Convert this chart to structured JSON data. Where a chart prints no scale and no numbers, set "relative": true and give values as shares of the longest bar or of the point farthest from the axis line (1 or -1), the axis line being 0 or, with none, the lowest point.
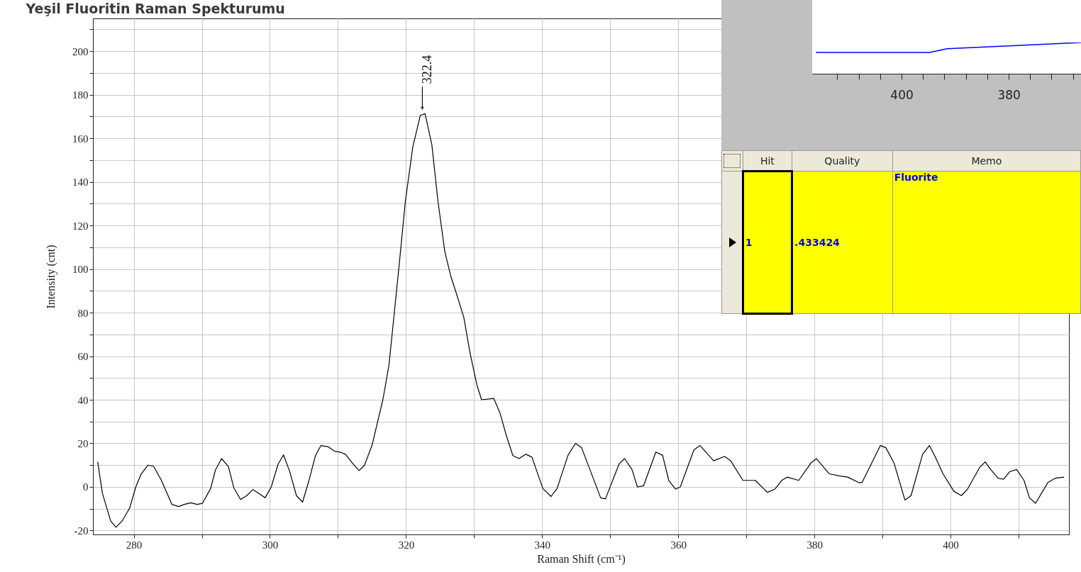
{
  "chart_data": [
    {
      "type": "line",
      "title": "Yeşil Fluoritin Raman Spekturumu",
      "xlabel": "Raman Shift (cm⁻¹)",
      "ylabel": "Intensity (cnt)",
      "xlim": [
        274,
        417.4
      ],
      "ylim": [
        -21.8,
        215
      ],
      "xticks": [
        280,
        {
          "value": 290,
          "label": null
        },
        300,
        {
          "value": 310,
          "label": null
        },
        320,
        {
          "value": 330,
          "label": null
        },
        340,
        {
          "value": 350,
          "label": null
        },
        360,
        {
          "value": 370,
          "label": null
        },
        380,
        {
          "value": 390,
          "label": null
        },
        400,
        {
          "value": 410,
          "label": null
        }
      ],
      "yticks": [
        -20,
        {
          "value": -10,
          "label": null
        },
        0,
        {
          "value": 10,
          "label": null
        },
        20,
        {
          "value": 30,
          "label": null
        },
        40,
        {
          "value": 50,
          "label": null
        },
        60,
        {
          "value": 70,
          "label": null
        },
        80,
        {
          "value": 90,
          "label": null
        },
        100,
        {
          "value": 110,
          "label": null
        },
        120,
        {
          "value": 130,
          "label": null
        },
        140,
        {
          "value": 150,
          "label": null
        },
        160,
        {
          "value": 170,
          "label": null
        },
        180,
        {
          "value": 190,
          "label": null
        },
        200,
        {
          "value": 210,
          "label": null
        }
      ],
      "grid": true,
      "annotations": [
        {
          "text": "322.4",
          "x": 322.4,
          "y": 172
        }
      ],
      "series": [
        {
          "color": "#000000",
          "x": [
            274.7,
            275.4,
            276.6,
            277.4,
            278.3,
            279.4,
            280.3,
            281.1,
            282.1,
            282.9,
            284,
            285.6,
            286.6,
            287.4,
            288.4,
            289.3,
            290.1,
            291.3,
            292,
            292.9,
            293.9,
            294.7,
            295.7,
            296.6,
            297.5,
            298.4,
            299.3,
            300.2,
            301.2,
            302,
            302.9,
            303.9,
            304.8,
            305.7,
            306.7,
            307.5,
            308.5,
            309.5,
            310.3,
            311.1,
            312.1,
            313.1,
            313.9,
            315,
            316.6,
            317.5,
            318.3,
            319,
            319.9,
            321,
            322.1,
            322.8,
            323.8,
            324.7,
            325.7,
            326.6,
            327.5,
            328.5,
            329.4,
            330.4,
            331.1,
            332.9,
            333.8,
            334.7,
            335.7,
            336.6,
            337.6,
            338.5,
            340.1,
            341.3,
            342.2,
            343.8,
            344.9,
            345.8,
            348.6,
            349.3,
            351.3,
            352.1,
            353.2,
            354,
            354.9,
            356.7,
            357.7,
            358.6,
            359.6,
            360.3,
            362.3,
            363.2,
            365.2,
            366.8,
            367.7,
            369.5,
            371.3,
            373.1,
            374.2,
            375.2,
            376,
            377.7,
            379.5,
            380.3,
            382.2,
            383.8,
            384.9,
            386.5,
            387,
            389.7,
            390.5,
            391.7,
            393.3,
            394.2,
            395.9,
            396.9,
            397.8,
            398.9,
            400.5,
            401.6,
            402.5,
            404.3,
            405.1,
            405.9,
            407,
            407.8,
            408.7,
            409.7,
            410.8,
            411.6,
            412.5,
            414.3,
            415.4,
            416.7
          ],
          "values": [
            11.5,
            -3,
            -15.6,
            -18.5,
            -15.6,
            -9.7,
            0,
            6,
            10,
            9.5,
            3.4,
            -8,
            -9,
            -8,
            -7.3,
            -8,
            -7.5,
            -0.7,
            7.8,
            13,
            9.4,
            -0.4,
            -5.8,
            -4,
            -1.2,
            -3,
            -5,
            0,
            10.4,
            14.7,
            7.2,
            -4,
            -7,
            2.5,
            14.4,
            19,
            18.5,
            16.4,
            16,
            15,
            11,
            7.5,
            10,
            19,
            40,
            56,
            80.6,
            102,
            131,
            156,
            170.5,
            171.3,
            157,
            131,
            108,
            96.5,
            87.8,
            77.7,
            61.6,
            47,
            40,
            40.6,
            34,
            24,
            14.4,
            13,
            15,
            13.7,
            -0.7,
            -4.4,
            -0.7,
            14.5,
            20,
            18,
            -5,
            -5.5,
            10.5,
            13,
            8,
            0,
            0.5,
            16,
            14.5,
            3,
            -1,
            0,
            17,
            19,
            12,
            14,
            12,
            3,
            3,
            -2.5,
            -1,
            3,
            4.5,
            3,
            11,
            13,
            6,
            5,
            4.5,
            2,
            2,
            19,
            18,
            11,
            -6,
            -4,
            15,
            19,
            13.5,
            6,
            -2,
            -4,
            -1,
            9,
            11.5,
            8,
            4,
            3.5,
            7,
            8,
            3,
            -5,
            -7.5,
            2,
            4,
            4.5
          ]
        }
      ]
    },
    {
      "type": "line",
      "relative": true,
      "xlim": [
        416.7,
        366.5
      ],
      "xticks": [
        {
          "value": 412,
          "label": null
        },
        {
          "value": 408,
          "label": null
        },
        {
          "value": 404,
          "label": null
        },
        400,
        {
          "value": 396,
          "label": null
        },
        {
          "value": 392,
          "label": null
        },
        {
          "value": 388,
          "label": null
        },
        {
          "value": 384,
          "label": null
        },
        380,
        {
          "value": 376,
          "label": null
        },
        {
          "value": 372,
          "label": null
        },
        {
          "value": 368,
          "label": null
        }
      ],
      "series": [
        {
          "color": "#0000ff",
          "x": [
            416,
            394.8,
            391.5,
            366.5
          ],
          "values": [
            0.68,
            0.68,
            0.8,
            1
          ]
        }
      ]
    },
    {
      "type": "other",
      "annotations": [
        "Hit",
        "Quality",
        "Memo",
        "1",
        ".433424",
        "Fluorite"
      ]
    }
  ]
}
